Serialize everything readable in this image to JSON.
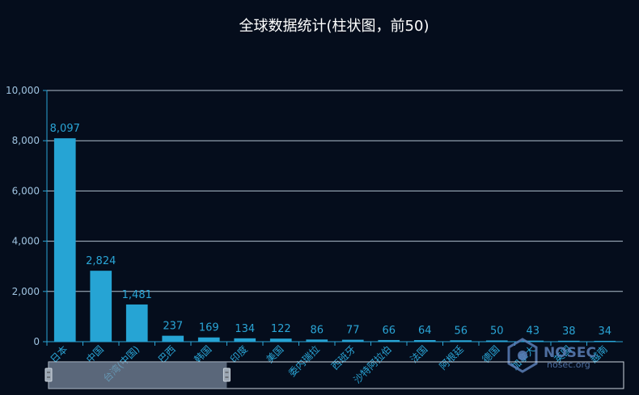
{
  "chart_data": {
    "type": "bar",
    "title": "全球数据统计(柱状图，前50)",
    "categories": [
      "日本",
      "中国",
      "台湾(中国)",
      "巴西",
      "韩国",
      "印度",
      "美国",
      "委内瑞拉",
      "西班牙",
      "沙特阿拉伯",
      "法国",
      "阿根廷",
      "德国",
      "加拿大",
      "英国",
      "越南"
    ],
    "values": [
      8097,
      2824,
      1481,
      237,
      169,
      134,
      122,
      86,
      77,
      66,
      64,
      56,
      50,
      43,
      38,
      34
    ],
    "value_labels": [
      "8,097",
      "2,824",
      "1,481",
      "237",
      "169",
      "134",
      "122",
      "86",
      "77",
      "66",
      "64",
      "56",
      "50",
      "43",
      "38",
      "34"
    ],
    "yticks": [
      "0",
      "2,000",
      "4,000",
      "6,000",
      "8,000",
      "10,000"
    ],
    "ylim": [
      0,
      10000
    ],
    "xlabel": "",
    "ylabel": "",
    "grid": true,
    "colors": {
      "bar": "#26a4d4",
      "background": "#050d1c",
      "grid": "#cfe0ee"
    },
    "data_zoom": {
      "start_fraction": 0.0,
      "end_fraction": 0.31
    }
  },
  "watermark": {
    "text": "NOSEC",
    "sub": "nosec.org"
  }
}
